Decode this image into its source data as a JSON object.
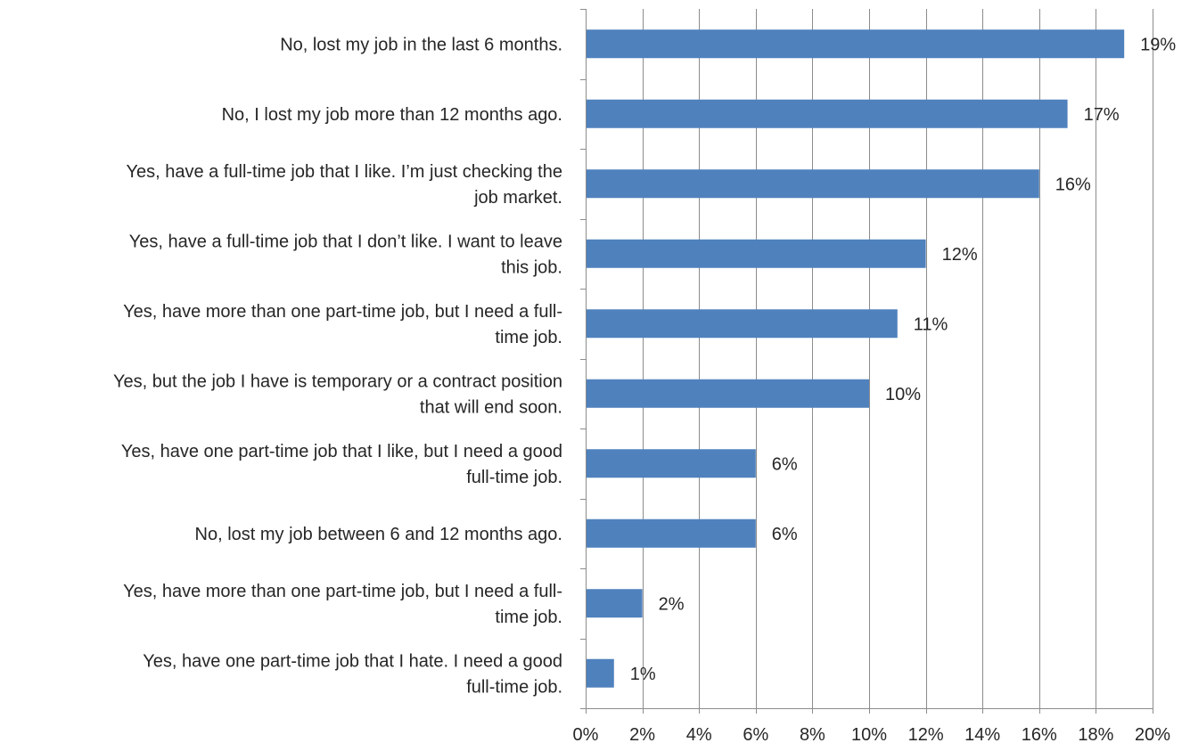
{
  "chart_data": {
    "type": "bar",
    "orientation": "horizontal",
    "categories": [
      "No, lost my job in the last 6 months.",
      "No, I lost my job more than 12 months ago.",
      "Yes, have a full-time job that I like.  I’m just checking the job market.",
      "Yes, have a full-time job that I don’t like.  I want to leave this job.",
      "Yes, have more than one part-time job, but I need a full-time job.",
      "Yes, but the job I have is temporary or a contract position that will end soon.",
      "Yes, have one part-time job that I like, but I need a good full-time job.",
      "No, lost my job between 6 and 12 months ago.",
      "Yes, have more than one part-time job, but I need a full-time job.",
      "Yes, have one part-time job that I hate.  I need a good full-time job."
    ],
    "category_lines": [
      [
        "No, lost my job in the last 6 months."
      ],
      [
        "No, I lost my job more than 12 months ago."
      ],
      [
        "Yes, have a full-time job that I like.  I’m just checking the",
        "job market."
      ],
      [
        "Yes, have a full-time job that I don’t like.  I want to leave",
        "this job."
      ],
      [
        "Yes, have more than one part-time job, but I need a full-",
        "time job."
      ],
      [
        "Yes, but the job I have is temporary or a contract position",
        "that will end soon."
      ],
      [
        "Yes, have one part-time job that I like, but I need a good",
        "full-time job."
      ],
      [
        "No, lost my job between 6 and 12 months ago."
      ],
      [
        "Yes, have more than one part-time job, but I need a full-",
        "time job."
      ],
      [
        "Yes, have one part-time job that I hate.  I need a good",
        "full-time job."
      ]
    ],
    "values": [
      19,
      17,
      16,
      12,
      11,
      10,
      6,
      6,
      2,
      1
    ],
    "data_labels": [
      "19%",
      "17%",
      "16%",
      "12%",
      "11%",
      "10%",
      "6%",
      "6%",
      "2%",
      "1%"
    ],
    "x_ticks": [
      0,
      2,
      4,
      6,
      8,
      10,
      12,
      14,
      16,
      18,
      20
    ],
    "x_tick_labels": [
      "0%",
      "2%",
      "4%",
      "6%",
      "8%",
      "10%",
      "12%",
      "14%",
      "16%",
      "18%",
      "20%"
    ],
    "xlim": [
      0,
      20
    ],
    "title": "",
    "xlabel": "",
    "ylabel": "",
    "grid": "vertical",
    "legend": "none",
    "bar_color": "#4f81bd",
    "grid_color": "#8c8c8c",
    "text_color": "#262626"
  }
}
